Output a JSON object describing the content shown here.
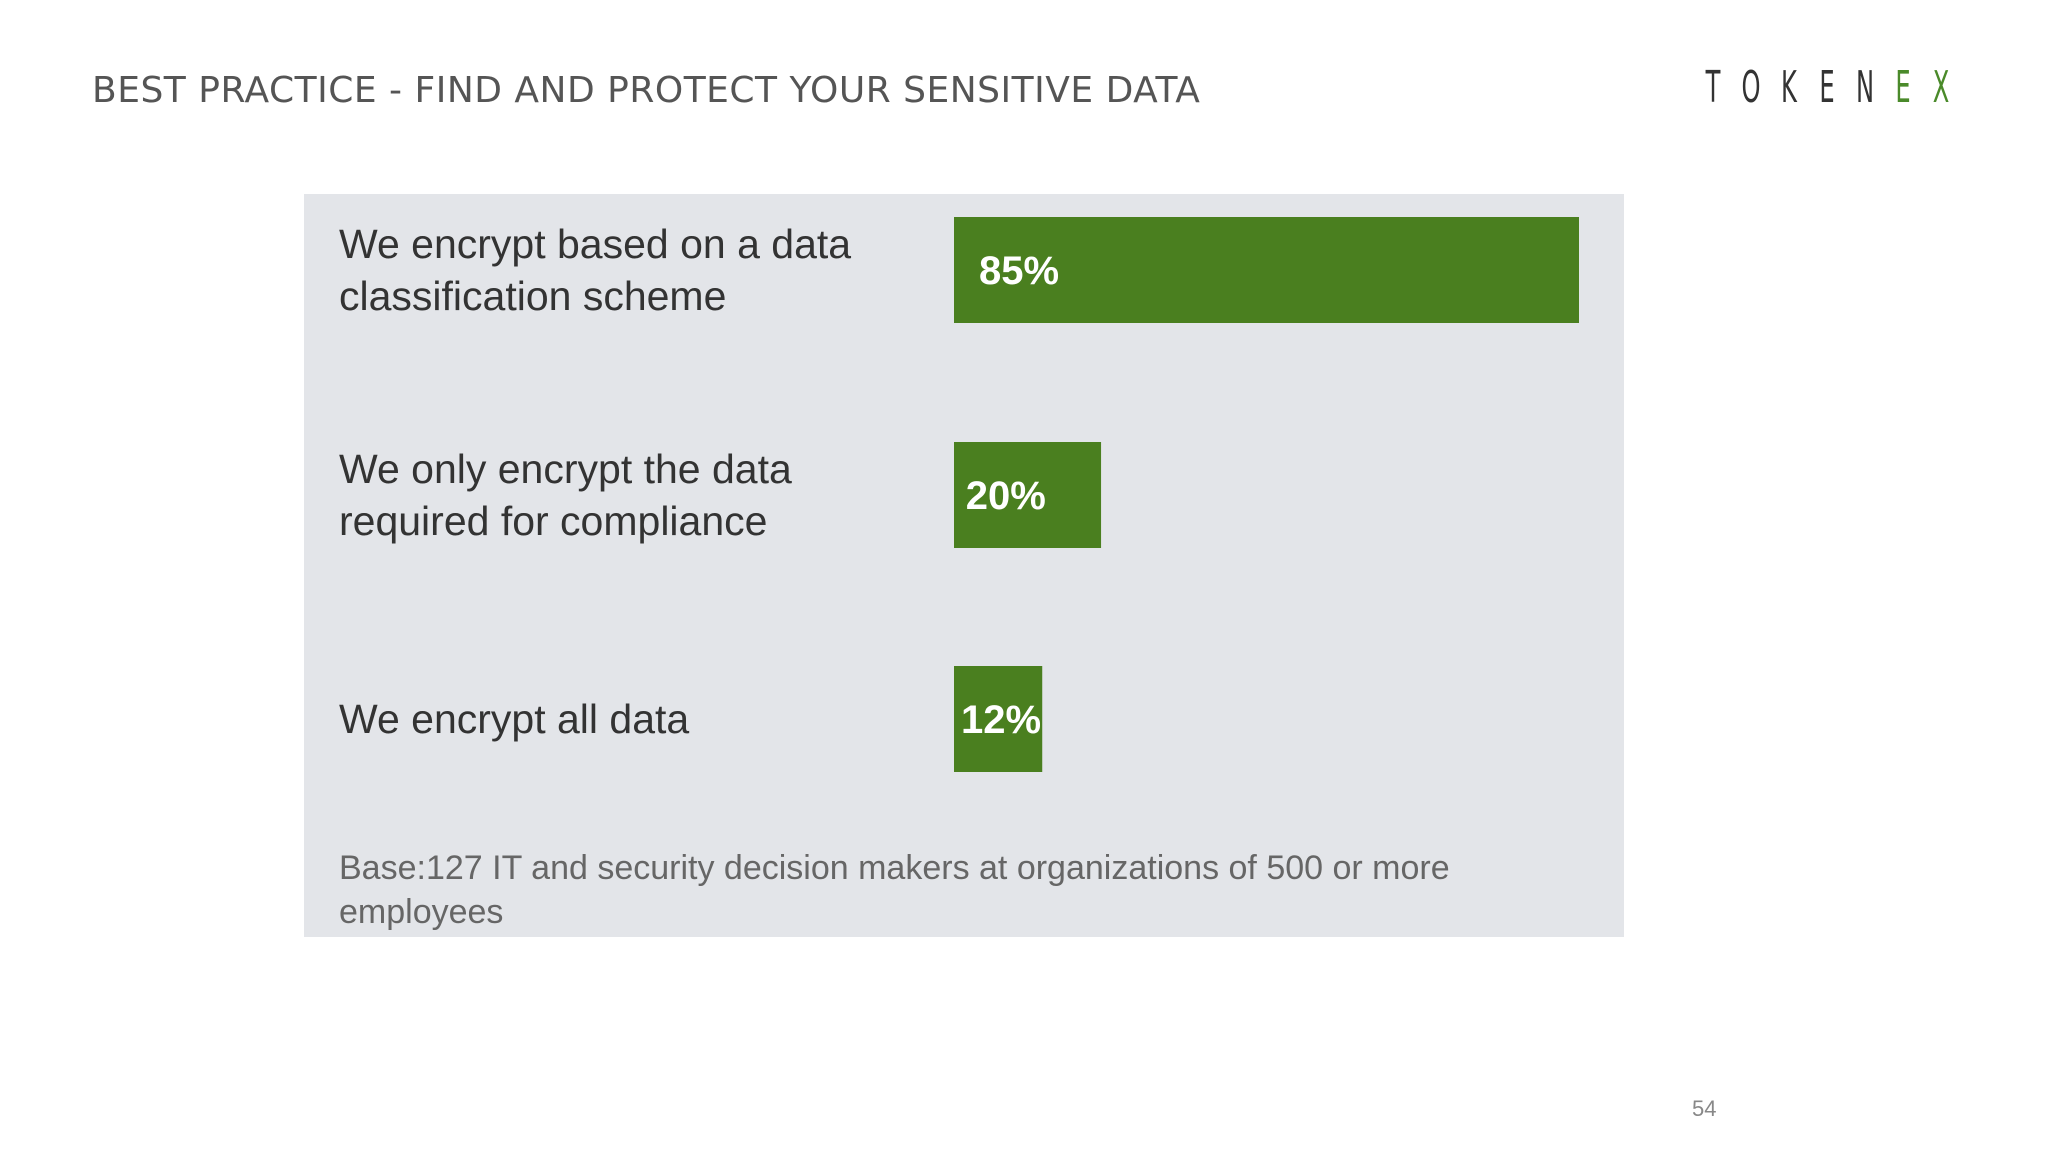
{
  "slide": {
    "title": "BEST PRACTICE - FIND AND PROTECT YOUR SENSITIVE DATA",
    "page_number": "54"
  },
  "logo": {
    "letters": [
      "T",
      "O",
      "K",
      "E",
      "N",
      "E",
      "X"
    ],
    "accent_color": "#4a8a2a"
  },
  "chart_data": {
    "type": "bar",
    "orientation": "horizontal",
    "categories": [
      [
        "We encrypt based on a data",
        "classification scheme"
      ],
      [
        "We only encrypt the data",
        "required for compliance"
      ],
      [
        "We encrypt all data"
      ]
    ],
    "values": [
      85,
      20,
      12
    ],
    "data_labels": [
      "85%",
      "20%",
      "12%"
    ],
    "bar_color": "#4a7f1f",
    "background": "#e3e5e9",
    "axis_visible": false,
    "grid": false,
    "xlim": [
      0,
      85
    ]
  },
  "footnote": "Base:127 IT and security decision makers at organizations of 500 or more employees"
}
